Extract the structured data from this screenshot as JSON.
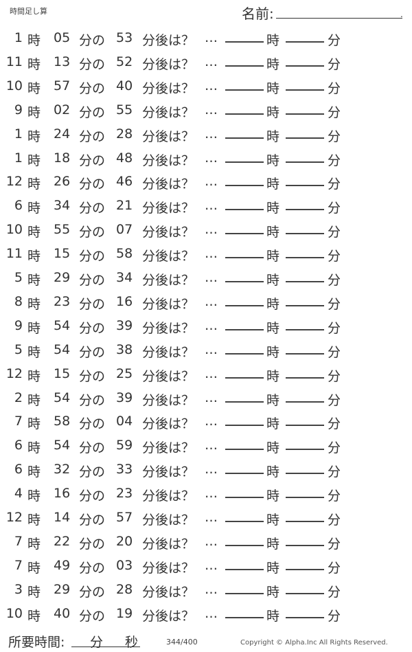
{
  "header": {
    "title": "時間足し算",
    "name_label": "名前:",
    "name_end": "."
  },
  "labels": {
    "hour": "時",
    "min_of": "分の",
    "after": "分後は？",
    "ellipsis": "…",
    "ans_hour": "時",
    "ans_min": "分"
  },
  "problems": [
    {
      "hour": "1",
      "minute": "05",
      "add": "53"
    },
    {
      "hour": "11",
      "minute": "13",
      "add": "52"
    },
    {
      "hour": "10",
      "minute": "57",
      "add": "40"
    },
    {
      "hour": "9",
      "minute": "02",
      "add": "55"
    },
    {
      "hour": "1",
      "minute": "24",
      "add": "28"
    },
    {
      "hour": "1",
      "minute": "18",
      "add": "48"
    },
    {
      "hour": "12",
      "minute": "26",
      "add": "46"
    },
    {
      "hour": "6",
      "minute": "34",
      "add": "21"
    },
    {
      "hour": "10",
      "minute": "55",
      "add": "07"
    },
    {
      "hour": "11",
      "minute": "15",
      "add": "58"
    },
    {
      "hour": "5",
      "minute": "29",
      "add": "34"
    },
    {
      "hour": "8",
      "minute": "23",
      "add": "16"
    },
    {
      "hour": "9",
      "minute": "54",
      "add": "39"
    },
    {
      "hour": "5",
      "minute": "54",
      "add": "38"
    },
    {
      "hour": "12",
      "minute": "15",
      "add": "25"
    },
    {
      "hour": "2",
      "minute": "54",
      "add": "39"
    },
    {
      "hour": "7",
      "minute": "58",
      "add": "04"
    },
    {
      "hour": "6",
      "minute": "54",
      "add": "59"
    },
    {
      "hour": "6",
      "minute": "32",
      "add": "33"
    },
    {
      "hour": "4",
      "minute": "16",
      "add": "23"
    },
    {
      "hour": "12",
      "minute": "14",
      "add": "57"
    },
    {
      "hour": "7",
      "minute": "22",
      "add": "20"
    },
    {
      "hour": "7",
      "minute": "49",
      "add": "03"
    },
    {
      "hour": "3",
      "minute": "29",
      "add": "28"
    },
    {
      "hour": "10",
      "minute": "40",
      "add": "19"
    }
  ],
  "footer": {
    "elapsed_label": "所要時間:",
    "min": "分",
    "sec": "秒",
    "page": "344/400",
    "copyright": "Copyright ©  Alpha.Inc All Rights Reserved."
  }
}
